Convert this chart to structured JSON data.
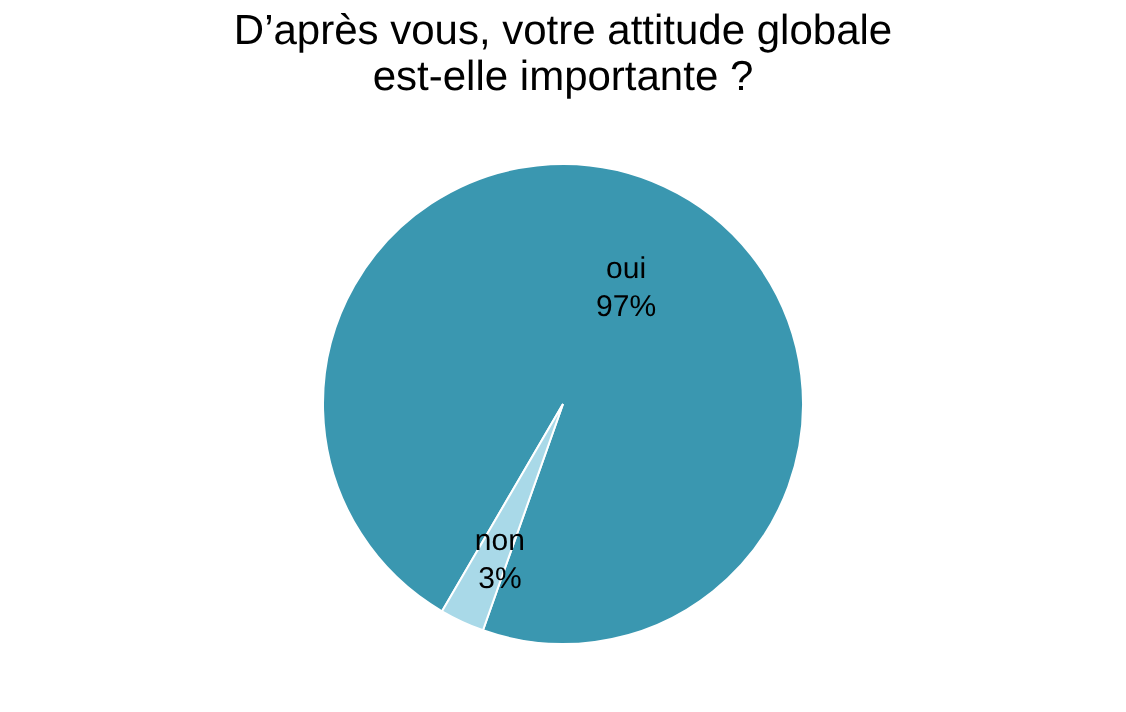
{
  "chart_data": {
    "type": "pie",
    "title": "D’après vous, votre attitude globale\nest-elle importante ?",
    "categories": [
      "oui",
      "non"
    ],
    "values": [
      97,
      3
    ],
    "colors": [
      "#3a97b0",
      "#a9d9e8"
    ],
    "value_labels": [
      "97%",
      "3%"
    ],
    "legend": false
  }
}
